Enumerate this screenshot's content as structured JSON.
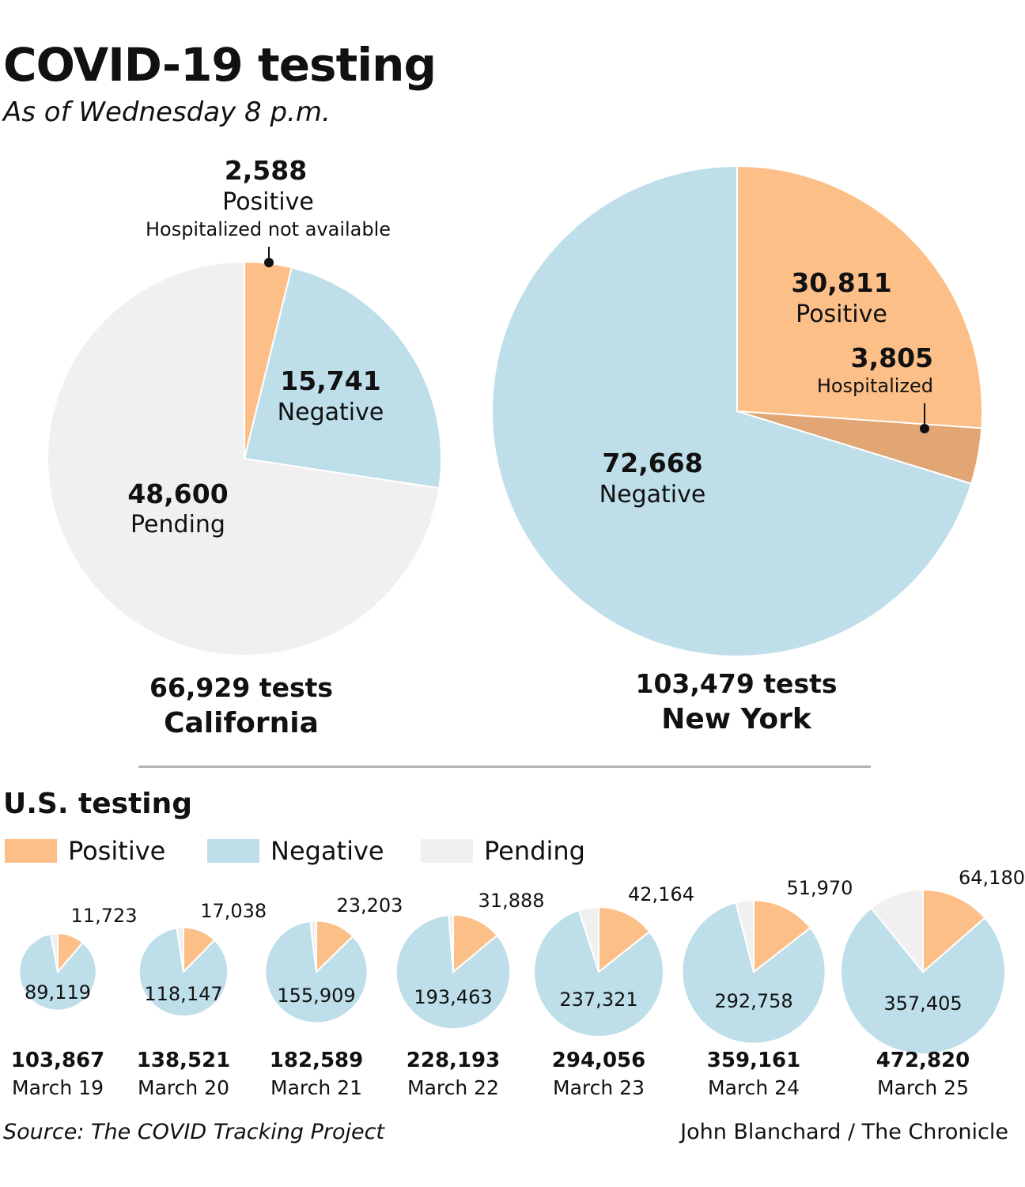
{
  "title": "COVID-19 testing",
  "subtitle": "As of Wednesday 8 p.m.",
  "colors": {
    "positive": "#fdbf88",
    "negative": "#bedfea",
    "pending": "#f0f0f0",
    "hospitalized": "#e2a574"
  },
  "chart_data": [
    {
      "type": "pie",
      "state": "California",
      "total_label": "66,929 tests",
      "slices": [
        {
          "name": "Positive",
          "value": 2588,
          "value_label": "2,588",
          "note": "Hospitalized not available"
        },
        {
          "name": "Negative",
          "value": 15741,
          "value_label": "15,741"
        },
        {
          "name": "Pending",
          "value": 48600,
          "value_label": "48,600"
        }
      ]
    },
    {
      "type": "pie",
      "state": "New York",
      "total_label": "103,479 tests",
      "slices": [
        {
          "name": "Positive",
          "value": 30811,
          "value_label": "30,811"
        },
        {
          "name": "Negative",
          "value": 72668,
          "value_label": "72,668"
        }
      ],
      "hospitalized": {
        "name": "Hospitalized",
        "value": 3805,
        "value_label": "3,805"
      }
    },
    {
      "type": "pie",
      "title": "U.S. testing",
      "legend": [
        "Positive",
        "Negative",
        "Pending"
      ],
      "days": [
        {
          "date": "March 19",
          "total": 103867,
          "total_label": "103,867",
          "positive": 11723,
          "positive_label": "11,723",
          "negative": 89119,
          "negative_label": "89,119"
        },
        {
          "date": "March 20",
          "total": 138521,
          "total_label": "138,521",
          "positive": 17038,
          "positive_label": "17,038",
          "negative": 118147,
          "negative_label": "118,147"
        },
        {
          "date": "March 21",
          "total": 182589,
          "total_label": "182,589",
          "positive": 23203,
          "positive_label": "23,203",
          "negative": 155909,
          "negative_label": "155,909"
        },
        {
          "date": "March 22",
          "total": 228193,
          "total_label": "228,193",
          "positive": 31888,
          "positive_label": "31,888",
          "negative": 193463,
          "negative_label": "193,463"
        },
        {
          "date": "March 23",
          "total": 294056,
          "total_label": "294,056",
          "positive": 42164,
          "positive_label": "42,164",
          "negative": 237321,
          "negative_label": "237,321"
        },
        {
          "date": "March 24",
          "total": 359161,
          "total_label": "359,161",
          "positive": 51970,
          "positive_label": "51,970",
          "negative": 292758,
          "negative_label": "292,758"
        },
        {
          "date": "March 25",
          "total": 472820,
          "total_label": "472,820",
          "positive": 64180,
          "positive_label": "64,180",
          "negative": 357405,
          "negative_label": "357,405"
        }
      ]
    }
  ],
  "source": "Source: The COVID Tracking Project",
  "credit": "John Blanchard / The Chronicle"
}
